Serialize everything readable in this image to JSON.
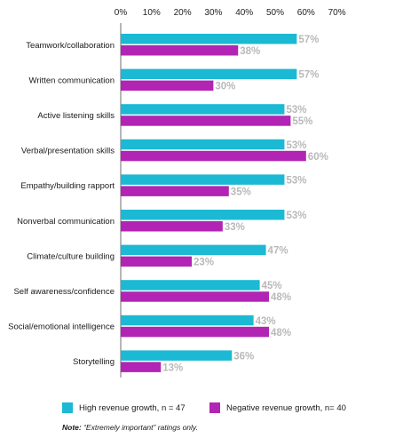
{
  "chart_data": {
    "type": "bar",
    "orientation": "horizontal",
    "x_ticks": [
      "0%",
      "10%",
      "20%",
      "30%",
      "40%",
      "50%",
      "60%",
      "70%"
    ],
    "xlim": [
      0,
      70
    ],
    "categories": [
      "Teamwork/collaboration",
      "Written communication",
      "Active listening skills",
      "Verbal/presentation skills",
      "Empathy/building rapport",
      "Nonverbal communication",
      "Climate/culture building",
      "Self awareness/confidence",
      "Social/emotional intelligence",
      "Storytelling"
    ],
    "series": [
      {
        "name": "High revenue growth, n = 47",
        "color": "#1bb9d3",
        "values": [
          57,
          57,
          53,
          53,
          53,
          53,
          47,
          45,
          43,
          36
        ],
        "labels": [
          "57%",
          "57%",
          "53%",
          "53%",
          "53%",
          "53%",
          "47%",
          "45%",
          "43%",
          "36%"
        ]
      },
      {
        "name": "Negative revenue growth, n= 40",
        "color": "#b224b4",
        "values": [
          38,
          30,
          55,
          60,
          35,
          33,
          23,
          48,
          48,
          13
        ],
        "labels": [
          "38%",
          "30%",
          "55%",
          "60%",
          "35%",
          "33%",
          "23%",
          "48%",
          "48%",
          "13%"
        ]
      }
    ],
    "legend_position": "bottom",
    "grid": false
  },
  "note": {
    "label": "Note:",
    "text": " “Extremely important” ratings only."
  }
}
